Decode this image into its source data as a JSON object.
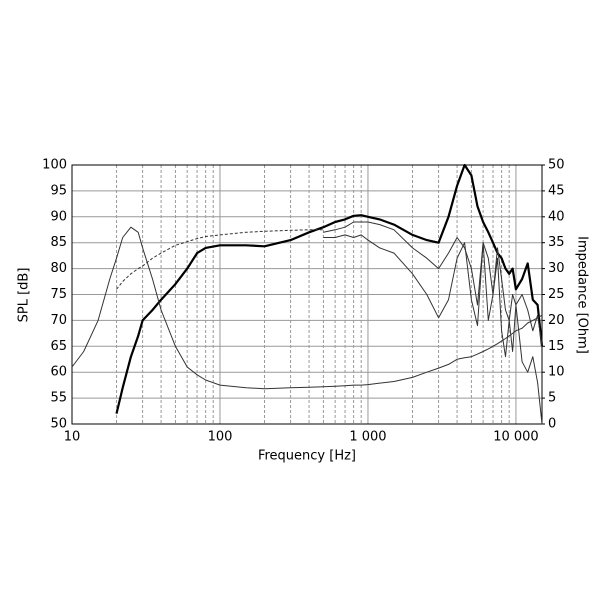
{
  "chart_data": {
    "type": "line",
    "x_label": "Frequency [Hz]",
    "y_label": "SPL [dB]",
    "y2_label": "Impedance [Ohm]",
    "x_log": true,
    "grid": true,
    "xlim": [
      10,
      15000
    ],
    "ylim": [
      50,
      100
    ],
    "y2lim": [
      0,
      50
    ],
    "xticks": [
      10,
      100,
      {
        "value": 1000,
        "label": "1 000"
      },
      {
        "value": 10000,
        "label": "10 000"
      }
    ],
    "xminorticks": [
      20,
      30,
      40,
      50,
      60,
      70,
      80,
      90,
      200,
      300,
      400,
      500,
      600,
      700,
      800,
      900,
      2000,
      3000,
      4000,
      5000,
      6000,
      7000,
      8000,
      9000
    ],
    "yticks": [
      50,
      55,
      60,
      65,
      70,
      75,
      80,
      85,
      90,
      95,
      100
    ],
    "y2ticks": [
      0,
      5,
      10,
      15,
      20,
      25,
      30,
      35,
      40,
      45,
      50
    ],
    "x": [
      10,
      12,
      15,
      18,
      20,
      22,
      25,
      28,
      30,
      35,
      40,
      50,
      60,
      70,
      80,
      100,
      150,
      200,
      300,
      400,
      500,
      600,
      700,
      800,
      900,
      1000,
      1200,
      1500,
      2000,
      2500,
      3000,
      3500,
      4000,
      4500,
      5000,
      5500,
      6000,
      6500,
      7000,
      7500,
      8000,
      8500,
      9000,
      9500,
      10000,
      11000,
      12000,
      13000,
      14000,
      15000
    ],
    "series": [
      {
        "color": "#000000",
        "width": 2.2,
        "values": [
          null,
          null,
          null,
          null,
          52,
          57,
          63,
          67,
          70,
          72,
          74,
          77,
          80,
          83,
          84,
          84.5,
          84.5,
          84.3,
          85.5,
          87,
          88,
          89,
          89.5,
          90.2,
          90.3,
          90,
          89.5,
          88.5,
          86.5,
          85.5,
          85,
          90,
          96,
          100,
          98,
          92,
          89,
          87,
          85,
          83,
          82,
          80,
          79,
          80,
          76,
          78,
          81,
          74,
          73,
          65
        ]
      },
      {
        "color": "#333333",
        "width": 1,
        "values": [
          null,
          null,
          null,
          null,
          null,
          null,
          null,
          null,
          null,
          null,
          null,
          null,
          null,
          null,
          null,
          null,
          null,
          null,
          null,
          null,
          87,
          87.5,
          88,
          89,
          89,
          89,
          88.5,
          87.5,
          84,
          82,
          80,
          83,
          86,
          84,
          80,
          73,
          85,
          82,
          75,
          84,
          78,
          72,
          70,
          75,
          73,
          75,
          72,
          68,
          71,
          65
        ]
      },
      {
        "color": "#333333",
        "width": 1,
        "values": [
          null,
          null,
          null,
          null,
          null,
          null,
          null,
          null,
          null,
          null,
          null,
          null,
          null,
          null,
          null,
          null,
          null,
          null,
          null,
          null,
          86,
          86,
          86.5,
          86,
          86.5,
          85.5,
          84,
          83,
          79,
          75,
          70.5,
          74,
          82,
          85,
          74,
          69,
          85,
          70,
          75,
          82,
          68,
          63,
          70,
          64,
          73,
          62,
          60,
          63,
          58,
          50
        ]
      },
      {
        "color": "#333333",
        "width": 1,
        "dashed": true,
        "values": [
          null,
          null,
          null,
          null,
          76,
          77.5,
          79,
          80,
          80.5,
          82,
          83,
          84.5,
          85.2,
          85.8,
          86.2,
          86.5,
          87,
          87.2,
          87.4,
          87.5,
          87.5,
          null,
          null,
          null,
          null,
          null,
          null,
          null,
          null,
          null,
          null,
          null,
          null,
          null,
          null,
          null,
          null,
          null,
          null,
          null,
          null,
          null,
          null,
          null,
          null,
          null,
          null,
          null,
          null,
          null
        ]
      },
      {
        "color": "#333333",
        "width": 1,
        "axis": "y2",
        "values": [
          11,
          14,
          20,
          28,
          32,
          36,
          38,
          37,
          34,
          28,
          22,
          15,
          11,
          9.5,
          8.5,
          7.5,
          7,
          6.8,
          7,
          7.1,
          7.2,
          7.3,
          7.4,
          7.5,
          7.5,
          7.6,
          7.9,
          8.2,
          9,
          10,
          10.8,
          11.5,
          12.5,
          12.8,
          13,
          13.5,
          14,
          14.5,
          15,
          15.5,
          16,
          16.5,
          17,
          17.5,
          18,
          18.5,
          19.5,
          20,
          20.5,
          21
        ]
      }
    ]
  }
}
